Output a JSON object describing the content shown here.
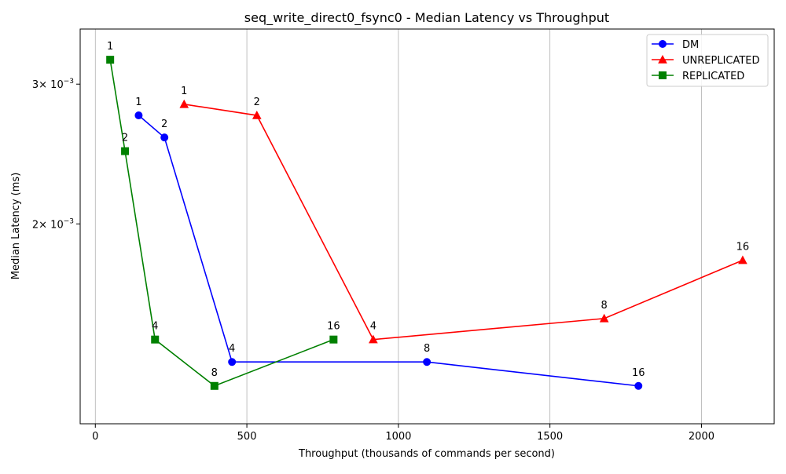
{
  "chart_data": {
    "type": "line",
    "title": "seq_write_direct0_fsync0 - Median Latency vs Throughput",
    "xlabel": "Throughput (thousands of commands per second)",
    "ylabel": "Median Latency (ms)",
    "xlim": [
      -50,
      2240
    ],
    "ylim": [
      0.00112,
      0.00352
    ],
    "yscale": "log",
    "grid": "vertical",
    "legend_position": "top-right",
    "x_ticks": [
      {
        "value": 0,
        "label": "0"
      },
      {
        "value": 500,
        "label": "500"
      },
      {
        "value": 1000,
        "label": "1000"
      },
      {
        "value": 1500,
        "label": "1500"
      },
      {
        "value": 2000,
        "label": "2000"
      }
    ],
    "y_ticks": [
      {
        "value": 0.002,
        "mantissa": "2",
        "exponent": "−3"
      },
      {
        "value": 0.003,
        "mantissa": "3",
        "exponent": "−3"
      }
    ],
    "y_tick_base": "× 10",
    "series": [
      {
        "name": "DM",
        "color": "#0000ff",
        "marker": "circle",
        "x": [
          143,
          228,
          451,
          1094,
          1792
        ],
        "y": [
          0.00274,
          0.00257,
          0.00134,
          0.00134,
          0.00125
        ],
        "labels": [
          "1",
          "2",
          "4",
          "8",
          "16"
        ]
      },
      {
        "name": "UNREPLICATED",
        "color": "#ff0000",
        "marker": "triangle",
        "x": [
          293,
          533,
          917,
          1679,
          2136
        ],
        "y": [
          0.00283,
          0.00274,
          0.00143,
          0.00152,
          0.0018
        ],
        "labels": [
          "1",
          "2",
          "4",
          "8",
          "16"
        ]
      },
      {
        "name": "REPLICATED",
        "color": "#008000",
        "marker": "square",
        "x": [
          49,
          98,
          197,
          393,
          786
        ],
        "y": [
          0.00322,
          0.00247,
          0.00143,
          0.00125,
          0.00143
        ],
        "labels": [
          "1",
          "2",
          "4",
          "8",
          "16"
        ]
      }
    ]
  }
}
